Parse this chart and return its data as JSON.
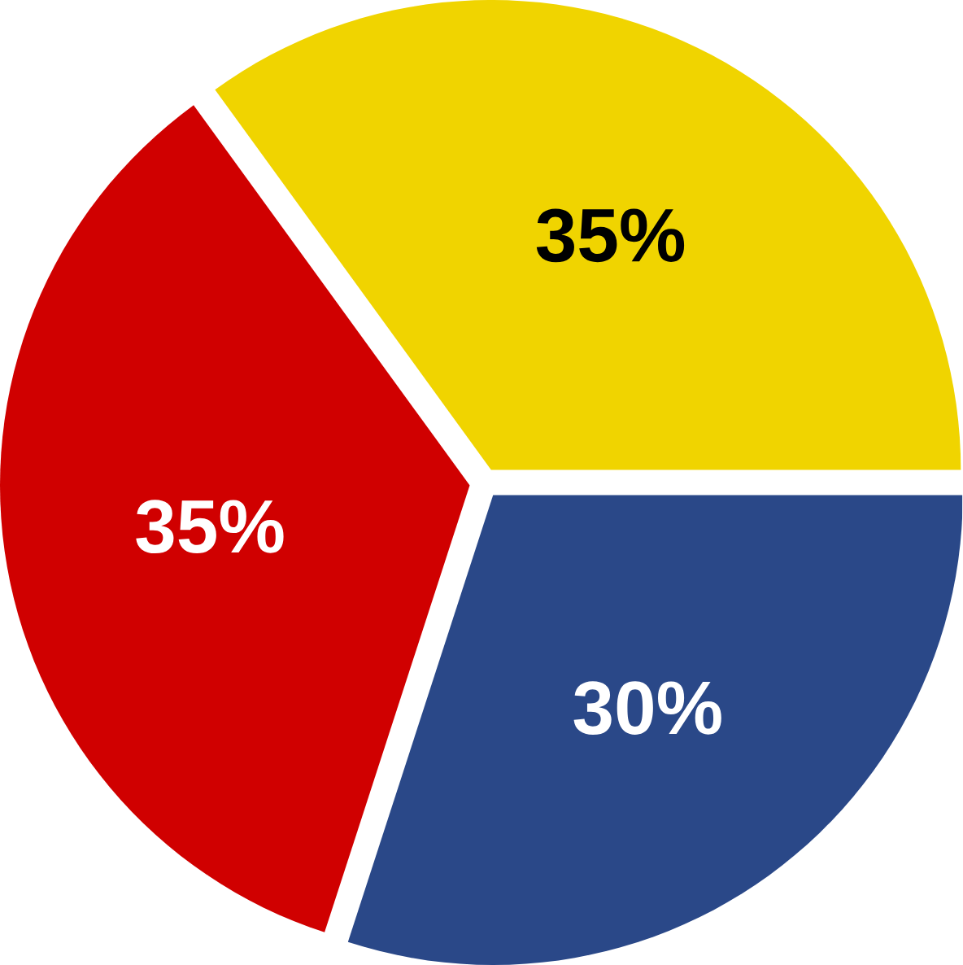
{
  "chart_data": {
    "type": "pie",
    "categories": [
      null,
      null,
      null
    ],
    "values": [
      35,
      35,
      30
    ],
    "colors": [
      "#f0d400",
      "#d00000",
      "#2a4888"
    ],
    "value_labels": [
      "35%",
      "35%",
      "30%"
    ]
  }
}
